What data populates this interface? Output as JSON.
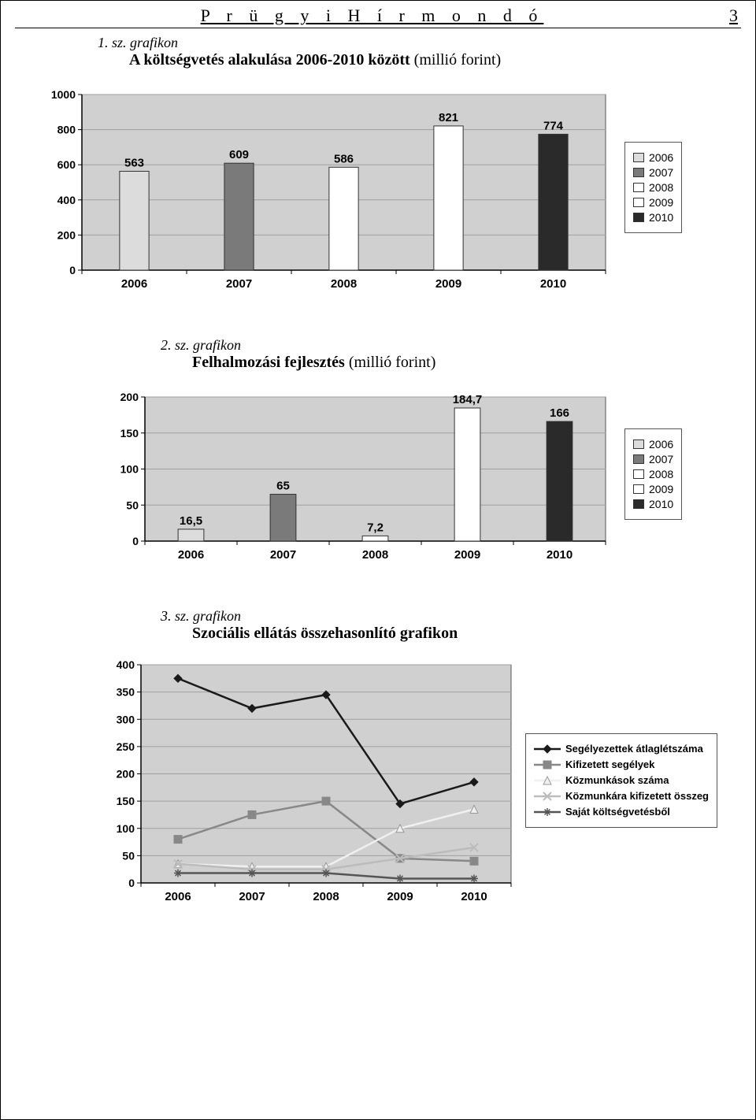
{
  "header": {
    "title": "P r ü g y i   H í r m o n d ó",
    "page_number": "3"
  },
  "chart1": {
    "label": "1. sz. grafikon",
    "title_bold": "A költségvetés alakulása 2006-2010 között",
    "title_light": " (millió forint)",
    "type": "bar",
    "categories": [
      "2006",
      "2007",
      "2008",
      "2009",
      "2010"
    ],
    "values": [
      563,
      609,
      586,
      821,
      774
    ],
    "bar_fills": [
      "#dcdcdc",
      "#7a7a7a",
      "#ffffff",
      "#ffffff",
      "#2a2a2a"
    ],
    "ylim": [
      0,
      1000
    ],
    "ytick_step": 200,
    "plot_bg": "#d0d0d0",
    "grid_color": "#a0a0a0",
    "legend_labels": [
      "2006",
      "2007",
      "2008",
      "2009",
      "2010"
    ],
    "legend_fills": [
      "#dcdcdc",
      "#7a7a7a",
      "#ffffff",
      "#ffffff",
      "#2a2a2a"
    ]
  },
  "chart2": {
    "label": "2. sz. grafikon",
    "title_bold": "Felhalmozási fejlesztés",
    "title_light": " (millió forint)",
    "type": "bar",
    "categories": [
      "2006",
      "2007",
      "2008",
      "2009",
      "2010"
    ],
    "values": [
      16.5,
      65,
      7.2,
      184.7,
      166
    ],
    "value_labels": [
      "16,5",
      "65",
      "7,2",
      "184,7",
      "166"
    ],
    "bar_fills": [
      "#dcdcdc",
      "#7a7a7a",
      "#ffffff",
      "#ffffff",
      "#2a2a2a"
    ],
    "ylim": [
      0,
      200
    ],
    "ytick_step": 50,
    "plot_bg": "#d0d0d0",
    "grid_color": "#a0a0a0",
    "legend_labels": [
      "2006",
      "2007",
      "2008",
      "2009",
      "2010"
    ],
    "legend_fills": [
      "#dcdcdc",
      "#7a7a7a",
      "#ffffff",
      "#ffffff",
      "#2a2a2a"
    ]
  },
  "chart3": {
    "label": "3. sz. grafikon",
    "title_bold": "Szociális ellátás összehasonlító grafikon",
    "title_light": "",
    "type": "line",
    "categories": [
      "2006",
      "2007",
      "2008",
      "2009",
      "2010"
    ],
    "ylim": [
      0,
      400
    ],
    "ytick_step": 50,
    "plot_bg": "#d0d0d0",
    "grid_color": "#a0a0a0",
    "series": [
      {
        "name": "Segélyezettek átlaglétszáma",
        "color": "#1a1a1a",
        "marker": "diamond",
        "values": [
          375,
          320,
          345,
          145,
          185
        ]
      },
      {
        "name": "Kifizetett segélyek",
        "color": "#888888",
        "marker": "square",
        "values": [
          80,
          125,
          150,
          45,
          40
        ]
      },
      {
        "name": "Közmunkások száma",
        "color": "#f0f0f0",
        "marker": "triangle",
        "values": [
          35,
          30,
          30,
          100,
          135
        ]
      },
      {
        "name": "Közmunkára kifizetett összeg",
        "color": "#bcbcbc",
        "marker": "x",
        "values": [
          35,
          25,
          25,
          45,
          65
        ]
      },
      {
        "name": "Saját költségvetésből",
        "color": "#555555",
        "marker": "star",
        "values": [
          18,
          18,
          18,
          8,
          8
        ]
      }
    ]
  }
}
